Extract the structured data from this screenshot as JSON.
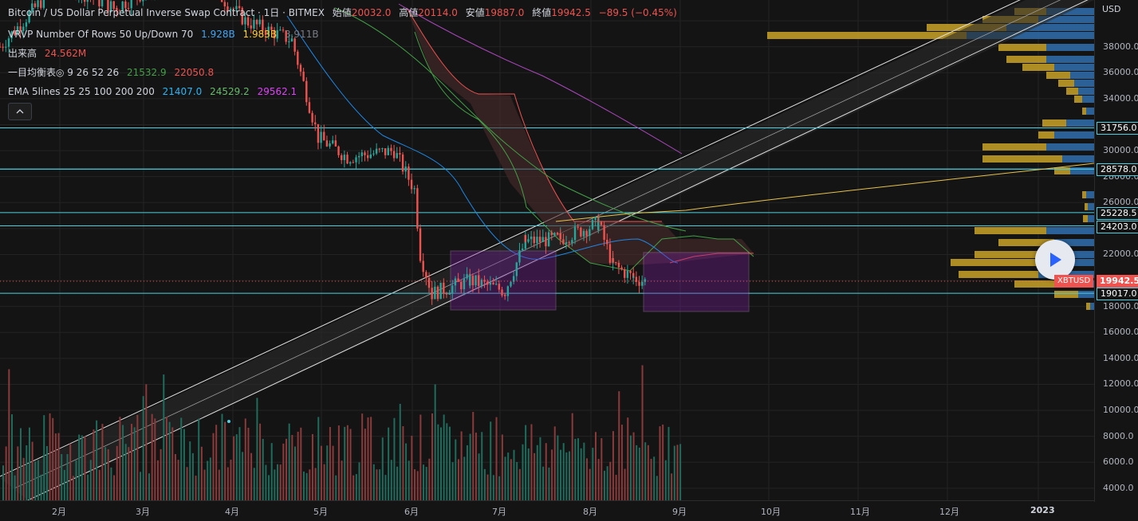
{
  "header": {
    "title": "Bitcoin / US Dollar Perpetual Inverse Swap Contract · 1日 · BITMEX",
    "open_label": "始値",
    "open": "20032.0",
    "high_label": "高値",
    "high": "20114.0",
    "low_label": "安値",
    "low": "19887.0",
    "close_label": "終値",
    "close": "19942.5",
    "change": "−89.5 (−0.45%)"
  },
  "indicators": {
    "vrvp_label": "VRVP Number Of Rows 50 Up/Down 70",
    "vrvp_up": "1.928B",
    "vrvp_down": "1.983B",
    "vrvp_total": "3.911B",
    "volume_label": "出来高",
    "volume_value": "24.562M",
    "ichimoku_label": "一目均衡表◎ 9 26 52 26",
    "ichimoku_a": "21532.9",
    "ichimoku_b": "22050.8",
    "ema_label": "EMA 5lines 25 25 100 200 200",
    "ema_1": "21407.0",
    "ema_2": "24529.2",
    "ema_3": "29562.1"
  },
  "collapse_icon": "chevron-up-icon",
  "play_icon": "play-icon",
  "price_axis": {
    "currency": "USD",
    "ticks": [
      "38000.0",
      "36000.0",
      "34000.0",
      "30000.0",
      "28000.0",
      "26000.0",
      "22000.0",
      "20000.0",
      "18000.0",
      "16000.0",
      "14000.0",
      "12000.0",
      "10000.0",
      "8000.0",
      "6000.0",
      "4000.0"
    ],
    "badges": [
      {
        "price": "31756.0",
        "color": "#4dd0e1"
      },
      {
        "price": "28580.0",
        "color": "#4dd0e1"
      },
      {
        "price": "28578.0",
        "color": "#4dd0e1"
      },
      {
        "price": "25228.5",
        "color": "#4dd0e1"
      },
      {
        "price": "24203.0",
        "color": "#4dd0e1"
      },
      {
        "price": "19017.0",
        "color": "#4dd0e1"
      }
    ],
    "symbol_tag": "XBTUSD",
    "last_price": "19942.5"
  },
  "date_axis": {
    "labels": [
      "2月",
      "3月",
      "4月",
      "5月",
      "6月",
      "7月",
      "8月",
      "9月",
      "10月",
      "11月",
      "12月",
      "2023"
    ]
  },
  "colors": {
    "up": "#26a69a",
    "down": "#ef5350",
    "hline": "#4dd0e1",
    "vrvp_up": "#2f6fad",
    "vrvp_down": "#c9a227",
    "box": "#9c27b0",
    "ema_fast": "#1e88e5",
    "ema_mid": "#43a047",
    "ema_slow": "#ab47bc"
  },
  "chart_data": {
    "type": "candlestick",
    "symbol": "XBTUSD",
    "exchange": "BITMEX",
    "interval": "1D",
    "ylim": [
      3000,
      42000
    ],
    "horizontal_levels": [
      31756.0,
      28580.0,
      28578.0,
      25228.5,
      24203.0,
      19017.0
    ],
    "last_close": 19942.5,
    "price_path": [
      {
        "date": "2022-05-01",
        "close": 38500
      },
      {
        "date": "2022-05-10",
        "close": 31000
      },
      {
        "date": "2022-05-20",
        "close": 29500
      },
      {
        "date": "2022-06-05",
        "close": 30000
      },
      {
        "date": "2022-06-12",
        "close": 27000
      },
      {
        "date": "2022-06-14",
        "close": 22000
      },
      {
        "date": "2022-06-18",
        "close": 19000
      },
      {
        "date": "2022-07-01",
        "close": 20000
      },
      {
        "date": "2022-07-13",
        "close": 19200
      },
      {
        "date": "2022-07-20",
        "close": 23000
      },
      {
        "date": "2022-08-01",
        "close": 23200
      },
      {
        "date": "2022-08-14",
        "close": 24400
      },
      {
        "date": "2022-08-19",
        "close": 21200
      },
      {
        "date": "2022-08-26",
        "close": 20200
      },
      {
        "date": "2022-08-30",
        "close": 19942.5
      }
    ]
  }
}
